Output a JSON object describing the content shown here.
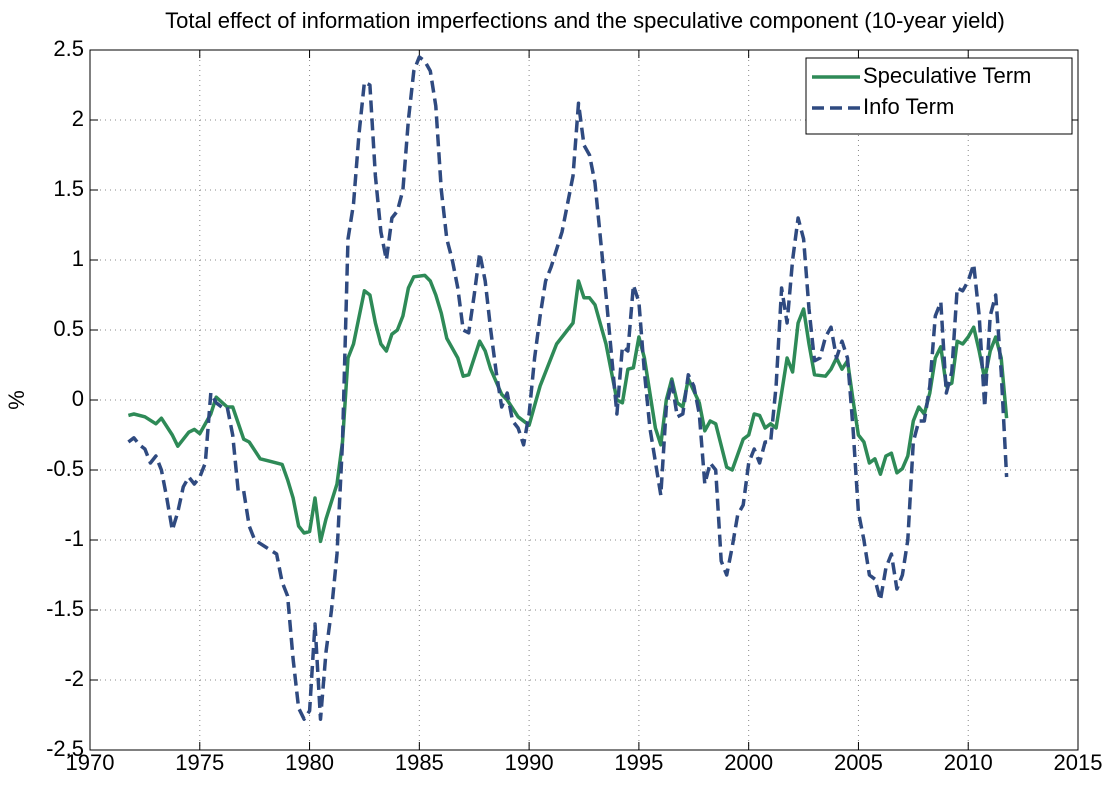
{
  "chart_data": {
    "type": "line",
    "title": "Total effect of information imperfections and the speculative component (10-year yield)",
    "y_label": "%",
    "xlim": [
      1970,
      2015
    ],
    "xticks": [
      1970,
      1975,
      1980,
      1985,
      1990,
      1995,
      2000,
      2005,
      2010,
      2015
    ],
    "ylim": [
      -2.5,
      2.5
    ],
    "yticks": [
      -2.5,
      -2,
      -1.5,
      -1,
      -0.5,
      0,
      0.5,
      1,
      1.5,
      2,
      2.5
    ],
    "grid": true,
    "legend": "upper right",
    "series": [
      {
        "name": "Speculative Term",
        "color": "#2e8a57",
        "dash": "solid",
        "x": [
          1971.75,
          1972,
          1972.5,
          1973,
          1973.25,
          1973.75,
          1974,
          1974.5,
          1974.75,
          1975,
          1975.5,
          1975.75,
          1976.25,
          1976.5,
          1977,
          1977.25,
          1977.75,
          1978.25,
          1978.75,
          1979,
          1979.25,
          1979.5,
          1979.75,
          1980,
          1980.25,
          1980.5,
          1980.75,
          1981.25,
          1981.5,
          1981.75,
          1982,
          1982.5,
          1982.75,
          1983,
          1983.25,
          1983.5,
          1983.75,
          1984,
          1984.25,
          1984.5,
          1984.75,
          1985.25,
          1985.5,
          1985.75,
          1986,
          1986.25,
          1986.75,
          1987,
          1987.25,
          1987.75,
          1988,
          1988.25,
          1988.75,
          1989,
          1989.5,
          1990,
          1990.5,
          1991,
          1991.25,
          1991.75,
          1992,
          1992.25,
          1992.5,
          1992.75,
          1993,
          1993.5,
          1994,
          1994.25,
          1994.5,
          1994.75,
          1995,
          1995.25,
          1995.75,
          1996,
          1996.25,
          1996.5,
          1996.75,
          1997,
          1997.25,
          1997.75,
          1998,
          1998.25,
          1998.5,
          1999,
          1999.25,
          1999.75,
          2000,
          2000.25,
          2000.5,
          2000.75,
          2001,
          2001.25,
          2001.75,
          2002,
          2002.25,
          2002.5,
          2002.75,
          2003,
          2003.5,
          2003.75,
          2004,
          2004.25,
          2004.5,
          2004.75,
          2005,
          2005.25,
          2005.5,
          2005.75,
          2006,
          2006.25,
          2006.5,
          2006.75,
          2007,
          2007.25,
          2007.5,
          2007.75,
          2008,
          2008.25,
          2008.5,
          2008.75,
          2009,
          2009.25,
          2009.5,
          2009.75,
          2010,
          2010.25,
          2010.5,
          2010.75,
          2011,
          2011.25,
          2011.5,
          2011.75
        ],
        "values": [
          -0.11,
          -0.1,
          -0.12,
          -0.17,
          -0.13,
          -0.25,
          -0.33,
          -0.23,
          -0.21,
          -0.24,
          -0.1,
          0.02,
          -0.05,
          -0.05,
          -0.28,
          -0.3,
          -0.42,
          -0.44,
          -0.46,
          -0.57,
          -0.7,
          -0.9,
          -0.95,
          -0.94,
          -0.7,
          -1.01,
          -0.85,
          -0.6,
          -0.3,
          0.3,
          0.4,
          0.78,
          0.75,
          0.55,
          0.4,
          0.35,
          0.47,
          0.5,
          0.6,
          0.8,
          0.88,
          0.89,
          0.85,
          0.75,
          0.62,
          0.44,
          0.3,
          0.17,
          0.18,
          0.42,
          0.35,
          0.22,
          0.04,
          0,
          -0.12,
          -0.18,
          0.1,
          0.3,
          0.4,
          0.5,
          0.55,
          0.85,
          0.73,
          0.73,
          0.68,
          0.4,
          0,
          -0.02,
          0.22,
          0.23,
          0.45,
          0.3,
          -0.2,
          -0.32,
          0,
          0.15,
          -0.02,
          -0.05,
          0.15,
          -0.02,
          -0.22,
          -0.15,
          -0.17,
          -0.48,
          -0.5,
          -0.28,
          -0.25,
          -0.1,
          -0.11,
          -0.2,
          -0.17,
          -0.2,
          0.3,
          0.2,
          0.55,
          0.65,
          0.4,
          0.18,
          0.17,
          0.22,
          0.3,
          0.22,
          0.28,
          0,
          -0.25,
          -0.3,
          -0.45,
          -0.42,
          -0.53,
          -0.4,
          -0.38,
          -0.52,
          -0.49,
          -0.4,
          -0.15,
          -0.05,
          -0.1,
          0.05,
          0.3,
          0.38,
          0.1,
          0.12,
          0.42,
          0.4,
          0.45,
          0.52,
          0.35,
          0.15,
          0.35,
          0.45,
          0.3,
          -0.13
        ]
      },
      {
        "name": "Info Term",
        "color": "#2f4a80",
        "dash": "dashed",
        "x": [
          1971.75,
          1972,
          1972.25,
          1972.5,
          1972.75,
          1973,
          1973.25,
          1973.5,
          1973.75,
          1974,
          1974.25,
          1974.5,
          1974.75,
          1975,
          1975.25,
          1975.5,
          1975.75,
          1976,
          1976.25,
          1976.5,
          1976.75,
          1977,
          1977.25,
          1977.5,
          1978,
          1978.5,
          1978.75,
          1979,
          1979.25,
          1979.5,
          1979.75,
          1980,
          1980.25,
          1980.5,
          1980.75,
          1981,
          1981.25,
          1981.5,
          1981.75,
          1982,
          1982.25,
          1982.5,
          1982.75,
          1983,
          1983.25,
          1983.5,
          1983.75,
          1984,
          1984.25,
          1984.5,
          1984.75,
          1985,
          1985.25,
          1985.5,
          1985.75,
          1986,
          1986.25,
          1986.5,
          1986.75,
          1987,
          1987.25,
          1987.5,
          1987.75,
          1988,
          1988.25,
          1988.5,
          1988.75,
          1989,
          1989.25,
          1989.5,
          1989.75,
          1990,
          1990.25,
          1990.5,
          1990.75,
          1991,
          1991.5,
          1992,
          1992.25,
          1992.5,
          1992.75,
          1993,
          1993.5,
          1994,
          1994.25,
          1994.5,
          1994.75,
          1995,
          1995.25,
          1995.5,
          1996,
          1996.25,
          1996.5,
          1996.75,
          1997,
          1997.25,
          1997.5,
          1997.75,
          1998,
          1998.25,
          1998.5,
          1998.75,
          1999,
          1999.25,
          1999.5,
          1999.75,
          2000,
          2000.25,
          2000.5,
          2000.75,
          2001,
          2001.25,
          2001.5,
          2001.75,
          2002,
          2002.25,
          2002.5,
          2002.75,
          2003,
          2003.25,
          2003.5,
          2003.75,
          2004,
          2004.25,
          2004.5,
          2004.75,
          2005,
          2005.25,
          2005.5,
          2005.75,
          2006,
          2006.25,
          2006.5,
          2006.75,
          2007,
          2007.25,
          2007.5,
          2007.75,
          2008,
          2008.25,
          2008.5,
          2008.75,
          2009,
          2009.25,
          2009.5,
          2009.75,
          2010,
          2010.25,
          2010.5,
          2010.75,
          2011,
          2011.25,
          2011.5,
          2011.75
        ],
        "values": [
          -0.3,
          -0.27,
          -0.32,
          -0.35,
          -0.45,
          -0.4,
          -0.5,
          -0.7,
          -0.93,
          -0.8,
          -0.62,
          -0.55,
          -0.6,
          -0.55,
          -0.45,
          0.05,
          -0.02,
          -0.05,
          -0.05,
          -0.25,
          -0.65,
          -0.65,
          -0.9,
          -1,
          -1.05,
          -1.1,
          -1.3,
          -1.4,
          -1.85,
          -2.2,
          -2.28,
          -2.22,
          -1.6,
          -2.28,
          -1.8,
          -1.5,
          -1.1,
          -0.3,
          1.15,
          1.4,
          1.9,
          2.27,
          2.25,
          1.6,
          1.2,
          1,
          1.3,
          1.35,
          1.5,
          2,
          2.35,
          2.45,
          2.42,
          2.35,
          2.1,
          1.5,
          1.15,
          1,
          0.8,
          0.5,
          0.48,
          0.75,
          1.05,
          0.85,
          0.5,
          0.2,
          -0.05,
          0.05,
          -0.15,
          -0.2,
          -0.32,
          -0.1,
          0.3,
          0.6,
          0.85,
          0.95,
          1.2,
          1.6,
          2.12,
          1.82,
          1.75,
          1.55,
          0.75,
          -0.1,
          0.38,
          0.35,
          0.82,
          0.7,
          0.2,
          -0.2,
          -0.68,
          -0.05,
          0.13,
          -0.12,
          -0.1,
          0.18,
          0.1,
          -0.1,
          -0.6,
          -0.45,
          -0.5,
          -1.15,
          -1.25,
          -1.05,
          -0.82,
          -0.75,
          -0.45,
          -0.35,
          -0.45,
          -0.3,
          -0.3,
          0.1,
          0.8,
          0.55,
          1,
          1.3,
          1.15,
          0.65,
          0.28,
          0.3,
          0.45,
          0.52,
          0.3,
          0.42,
          0.3,
          -0.2,
          -0.8,
          -1,
          -1.25,
          -1.28,
          -1.43,
          -1.2,
          -1.1,
          -1.35,
          -1.25,
          -1,
          -0.3,
          -0.15,
          -0.15,
          0.1,
          0.6,
          0.7,
          0.05,
          0.2,
          0.8,
          0.78,
          0.85,
          0.97,
          0.6,
          -0.05,
          0.6,
          0.75,
          0.2,
          -0.55
        ]
      }
    ]
  }
}
